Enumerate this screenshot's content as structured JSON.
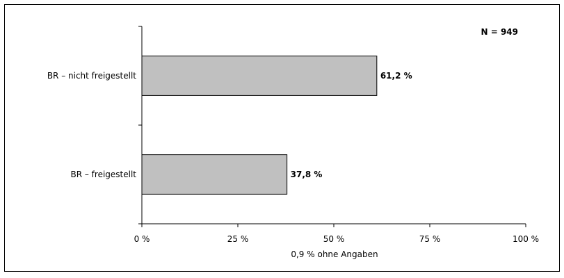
{
  "chart_data": {
    "type": "bar",
    "orientation": "horizontal",
    "categories": [
      "BR – nicht freigestellt",
      "BR – freigestellt"
    ],
    "values": [
      61.2,
      37.8
    ],
    "value_labels": [
      "61,2  %",
      "37,8 %"
    ],
    "xlim": [
      0,
      100
    ],
    "x_ticks": [
      0,
      25,
      50,
      75,
      100
    ],
    "x_tick_labels": [
      "0  %",
      "25 %",
      "50 %",
      "75 %",
      "100 %"
    ],
    "xlabel": "0,9  % ohne Angaben",
    "ylabel": "",
    "title": "",
    "annotation": "N = 949",
    "grid": false,
    "bar_color": "#c0c0c0",
    "bar_edge_color": "#000000"
  }
}
